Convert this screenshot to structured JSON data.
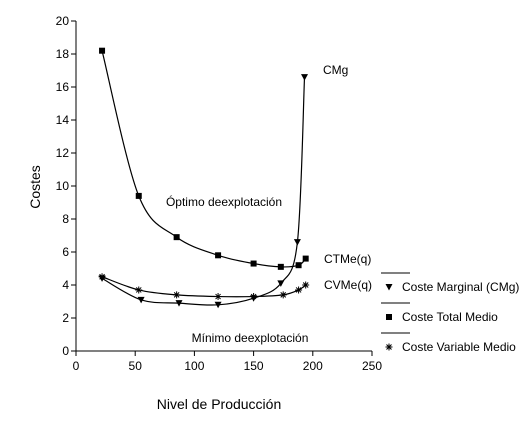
{
  "chart_data": {
    "type": "line",
    "title": "",
    "xlabel": "Nivel de Producción",
    "ylabel": "Costes",
    "xlim": [
      0,
      250
    ],
    "ylim": [
      0,
      20
    ],
    "xticks": [
      0,
      50,
      100,
      150,
      200,
      250
    ],
    "yticks": [
      0,
      2,
      4,
      6,
      8,
      10,
      12,
      14,
      16,
      18,
      20
    ],
    "grid": false,
    "legend_position": "right",
    "series": [
      {
        "key": "cmg",
        "name": "Coste Marginal (CMg)",
        "marker": "triangle-down",
        "curve_label": "CMg",
        "x": [
          22,
          55,
          87,
          120,
          150,
          173,
          187,
          193
        ],
        "y": [
          4.4,
          3.1,
          2.9,
          2.8,
          3.2,
          4.1,
          6.6,
          16.6
        ]
      },
      {
        "key": "ctme",
        "name": "Coste Total Medio",
        "marker": "square",
        "curve_label": "CTMe(q)",
        "x": [
          22,
          53,
          85,
          120,
          150,
          173,
          188,
          194
        ],
        "y": [
          18.2,
          9.4,
          6.9,
          5.8,
          5.3,
          5.1,
          5.2,
          5.6
        ]
      },
      {
        "key": "cvme",
        "name": "Coste Variable Medio",
        "marker": "asterisk",
        "curve_label": "CVMe(q)",
        "x": [
          22,
          53,
          85,
          120,
          150,
          175,
          188,
          194
        ],
        "y": [
          4.5,
          3.7,
          3.4,
          3.3,
          3.3,
          3.4,
          3.7,
          4.0
        ]
      }
    ],
    "annotations": [
      {
        "key": "optimo",
        "text": "Óptimo deexplotación",
        "x": 125,
        "y": 8.8
      },
      {
        "key": "minimo",
        "text": "Mínimo deexplotación",
        "x": 147,
        "y": 0.55
      }
    ]
  }
}
